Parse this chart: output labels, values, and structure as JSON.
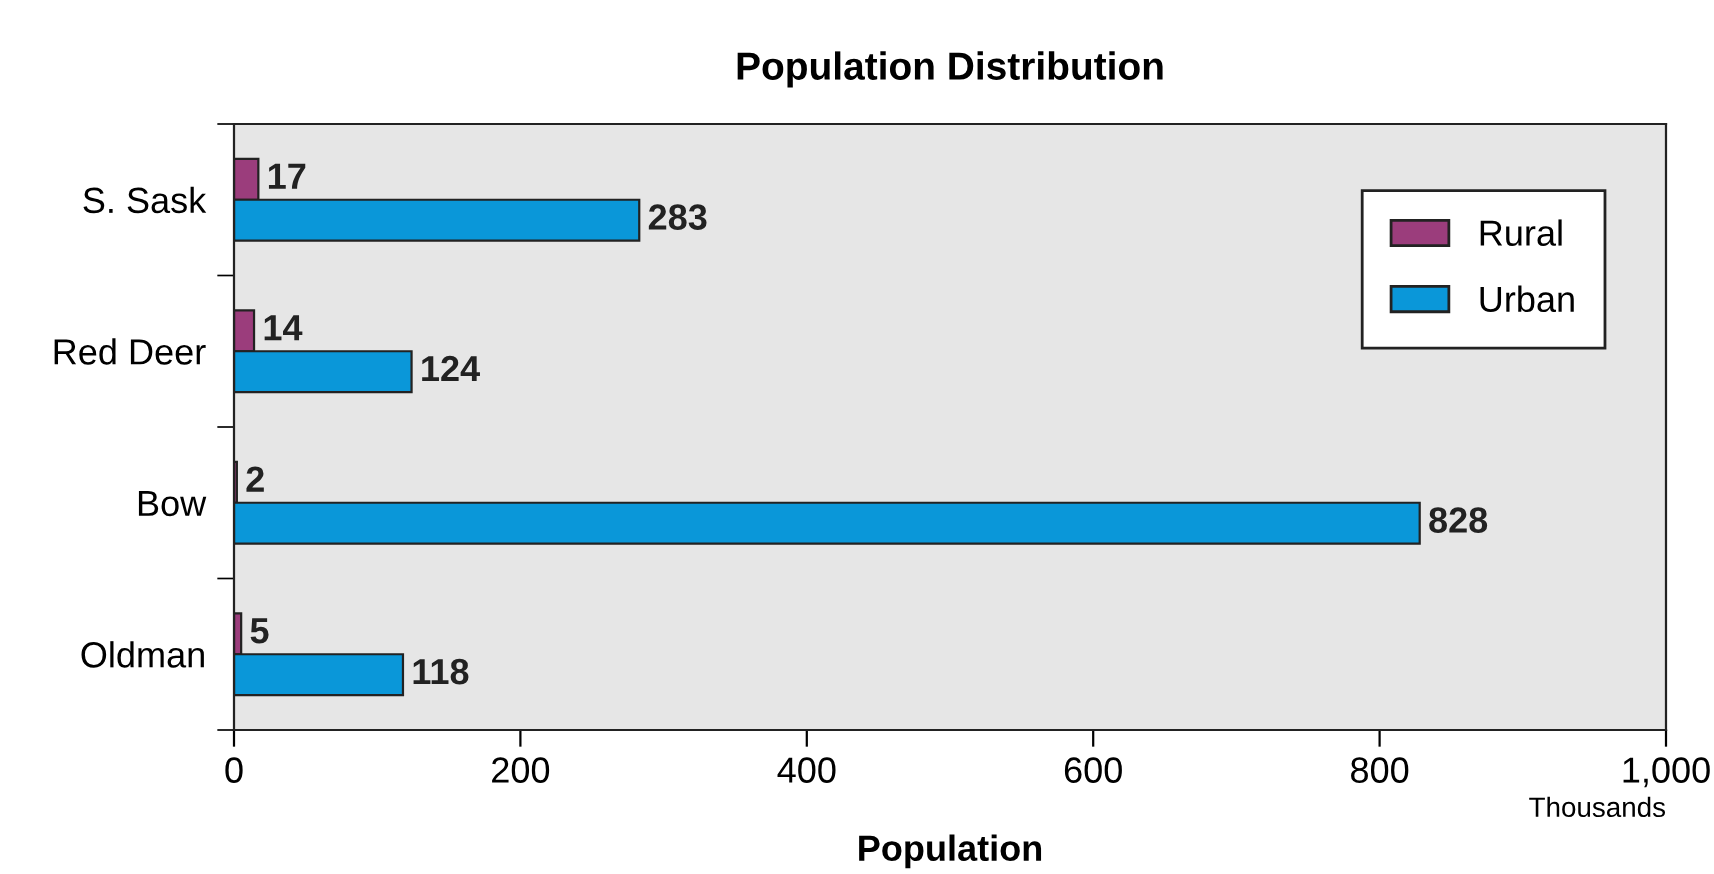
{
  "chart_data": {
    "type": "bar",
    "orientation": "horizontal",
    "title": "Population Distribution",
    "xlabel": "Population",
    "categories": [
      "S. Sask",
      "Red Deer",
      "Bow",
      "Oldman"
    ],
    "series": [
      {
        "name": "Rural",
        "color": "#9b3d7c",
        "values": [
          17,
          14,
          2,
          5
        ]
      },
      {
        "name": "Urban",
        "color": "#0a97d9",
        "values": [
          283,
          124,
          828,
          118
        ]
      }
    ],
    "xlim": [
      0,
      1000
    ],
    "xticks": [
      0,
      200,
      400,
      600,
      800,
      {
        "value": 1000,
        "label": "1,000"
      }
    ],
    "annotations": [
      "Thousands"
    ],
    "data_labels": true,
    "legend": "top right",
    "grid": false
  }
}
